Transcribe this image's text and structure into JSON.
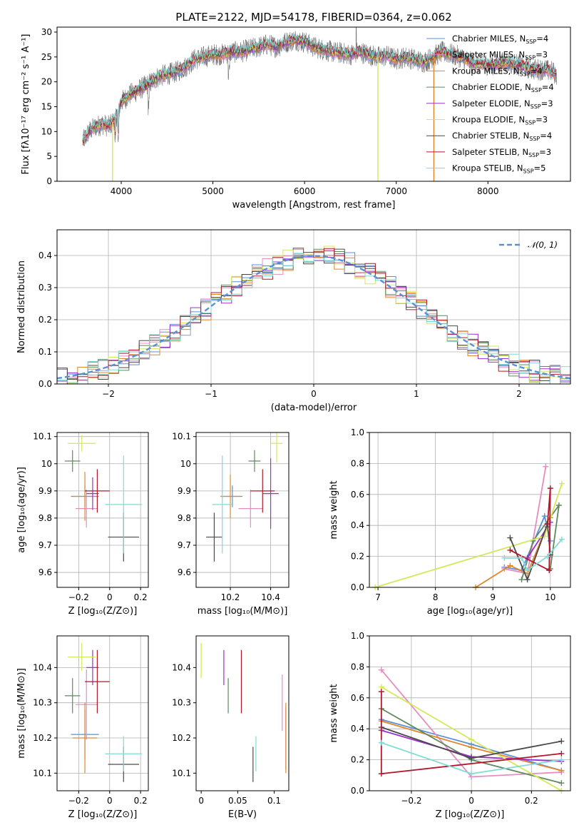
{
  "figure": {
    "title": "PLATE=2122, MJD=54178, FIBERID=0364, z=0.062"
  },
  "series_colors": {
    "Chabrier MILES": "#5b8fd6",
    "Salpeter MILES": "#e68cc2",
    "Kroupa MILES": "#e2872b",
    "Chabrier ELODIE": "#5f8a5f",
    "Salpeter ELODIE": "#9932cc",
    "Kroupa ELODIE": "#d4e85a",
    "Chabrier STELIB": "#4a4a4a",
    "Salpeter STELIB": "#b2182b",
    "Kroupa STELIB": "#7fdcd4"
  },
  "chart_data": [
    {
      "id": "spectrum",
      "type": "line",
      "xlabel": "wavelength [Angstrom, rest frame]",
      "ylabel": "Flux [fλ10⁻¹⁷ erg cm⁻² s⁻¹ A⁻¹]",
      "xlim": [
        3300,
        8900
      ],
      "ylim": [
        0,
        31
      ],
      "xticks": [
        4000,
        5000,
        6000,
        7000,
        8000
      ],
      "yticks": [
        0,
        5,
        10,
        15,
        20,
        25,
        30
      ],
      "grid": false,
      "legend_position": "right",
      "continuum": {
        "x": [
          3580,
          3650,
          3720,
          3800,
          3860,
          3900,
          3960,
          4000,
          4100,
          4200,
          4300,
          4400,
          4500,
          4600,
          4700,
          4800,
          4900,
          5000,
          5100,
          5200,
          5300,
          5400,
          5500,
          5600,
          5700,
          5800,
          5900,
          6000,
          6100,
          6200,
          6300,
          6400,
          6500,
          6600,
          6700,
          6800,
          6900,
          7000,
          7100,
          7200,
          7300,
          7400,
          7500,
          7600,
          7700,
          7800,
          7900,
          8000,
          8100,
          8200,
          8300,
          8400,
          8500,
          8600,
          8700,
          8750
        ],
        "y": [
          8,
          10,
          11,
          11.5,
          11,
          11.8,
          13.5,
          16,
          17.5,
          18.5,
          19.5,
          21,
          21.5,
          22,
          23,
          24.5,
          25,
          25.5,
          25.5,
          26,
          26,
          26.5,
          27,
          27.5,
          27,
          28,
          28.5,
          28,
          27,
          26.5,
          26,
          25.8,
          25.5,
          26,
          25.5,
          25,
          25.2,
          24.5,
          25,
          24.5,
          24,
          25,
          26,
          25.5,
          25,
          24,
          23.5,
          23.5,
          23.5,
          24,
          23.5,
          23,
          22.5,
          22.5,
          22,
          21.5
        ]
      },
      "series": [
        {
          "name": "Chabrier MILES",
          "nssp": "4"
        },
        {
          "name": "Salpeter MILES",
          "nssp": "3"
        },
        {
          "name": "Kroupa MILES",
          "nssp": "4"
        },
        {
          "name": "Chabrier ELODIE",
          "nssp": "4"
        },
        {
          "name": "Salpeter ELODIE",
          "nssp": "3"
        },
        {
          "name": "Kroupa ELODIE",
          "nssp": "3"
        },
        {
          "name": "Chabrier STELIB",
          "nssp": "4"
        },
        {
          "name": "Salpeter STELIB",
          "nssp": "3"
        },
        {
          "name": "Kroupa STELIB",
          "nssp": "5"
        }
      ]
    },
    {
      "id": "residuals",
      "type": "histogram",
      "xlabel": "(data-model)/error",
      "ylabel": "Normed distribution",
      "xlim": [
        -2.5,
        2.5
      ],
      "ylim": [
        0,
        0.48
      ],
      "xticks": [
        -2,
        -1,
        0,
        1,
        2
      ],
      "yticks": [
        0.0,
        0.1,
        0.2,
        0.3,
        0.4
      ],
      "grid": true,
      "legend_position": "top-right",
      "reference_curve": {
        "label": "𝒩(0, 1)",
        "mean": 0,
        "sigma": 1,
        "color": "#5b8fd6"
      },
      "bin_width": 0.1
    },
    {
      "id": "age-vs-Z",
      "type": "scatter",
      "xlabel": "Z [log₁₀(Z/Z⊙)]",
      "ylabel": "age  [log₁₀(age/yr)]",
      "xlim": [
        -0.34,
        0.25
      ],
      "ylim": [
        9.545,
        10.115
      ],
      "xticks": [
        -0.2,
        0.0,
        0.2
      ],
      "yticks": [
        9.6,
        9.7,
        9.8,
        9.9,
        10.0,
        10.1
      ],
      "grid": true,
      "points": [
        {
          "series": "Chabrier MILES",
          "x": -0.16,
          "y": 9.88,
          "xerr": 0.09,
          "yerr": 0.04
        },
        {
          "series": "Salpeter MILES",
          "x": -0.15,
          "y": 9.835,
          "xerr": 0.07,
          "yerr": 0.07
        },
        {
          "series": "Kroupa MILES",
          "x": -0.16,
          "y": 9.88,
          "xerr": 0.08,
          "yerr": 0.09
        },
        {
          "series": "Chabrier ELODIE",
          "x": -0.24,
          "y": 10.01,
          "xerr": 0.05,
          "yerr": 0.04
        },
        {
          "series": "Salpeter ELODIE",
          "x": -0.11,
          "y": 9.89,
          "xerr": 0.04,
          "yerr": 0.06
        },
        {
          "series": "Kroupa ELODIE",
          "x": -0.18,
          "y": 10.075,
          "xerr": 0.09,
          "yerr": 0.03
        },
        {
          "series": "Chabrier STELIB",
          "x": 0.09,
          "y": 9.73,
          "xerr": 0.1,
          "yerr": 0.09
        },
        {
          "series": "Salpeter STELIB",
          "x": -0.08,
          "y": 9.9,
          "xerr": 0.08,
          "yerr": 0.08
        },
        {
          "series": "Kroupa STELIB",
          "x": 0.09,
          "y": 9.85,
          "xerr": 0.12,
          "yerr": 0.18
        }
      ]
    },
    {
      "id": "age-vs-mass",
      "type": "scatter",
      "xlabel": "mass [log₁₀(M/M⊙)]",
      "ylabel": "",
      "xlim": [
        10.03,
        10.49
      ],
      "ylim": [
        9.545,
        10.115
      ],
      "xticks": [
        10.2,
        10.4
      ],
      "yticks": [
        9.6,
        9.7,
        9.8,
        9.9,
        10.0,
        10.1
      ],
      "grid": true,
      "points": [
        {
          "series": "Chabrier MILES",
          "x": 10.21,
          "y": 9.88,
          "xerr": 0.05,
          "yerr": 0.04
        },
        {
          "series": "Salpeter MILES",
          "x": 10.3,
          "y": 9.835,
          "xerr": 0.06,
          "yerr": 0.07
        },
        {
          "series": "Kroupa MILES",
          "x": 10.2,
          "y": 9.88,
          "xerr": 0.05,
          "yerr": 0.08
        },
        {
          "series": "Chabrier ELODIE",
          "x": 10.32,
          "y": 10.01,
          "xerr": 0.03,
          "yerr": 0.04
        },
        {
          "series": "Salpeter ELODIE",
          "x": 10.4,
          "y": 9.89,
          "xerr": 0.04,
          "yerr": 0.13
        },
        {
          "series": "Kroupa ELODIE",
          "x": 10.43,
          "y": 10.075,
          "xerr": 0.03,
          "yerr": 0.07
        },
        {
          "series": "Chabrier STELIB",
          "x": 10.12,
          "y": 9.73,
          "xerr": 0.04,
          "yerr": 0.09
        },
        {
          "series": "Salpeter STELIB",
          "x": 10.36,
          "y": 9.9,
          "xerr": 0.06,
          "yerr": 0.08
        },
        {
          "series": "Kroupa STELIB",
          "x": 10.16,
          "y": 9.85,
          "xerr": 0.05,
          "yerr": 0.18
        }
      ]
    },
    {
      "id": "weight-vs-age",
      "type": "line",
      "xlabel": "age  [log₁₀(age/yr)]",
      "ylabel": "mass weight",
      "xlim": [
        6.85,
        10.35
      ],
      "ylim": [
        0,
        1
      ],
      "xticks": [
        7,
        8,
        9,
        10
      ],
      "yticks": [
        0.0,
        0.2,
        0.4,
        0.6,
        0.8,
        1.0
      ],
      "grid": true,
      "series": [
        {
          "name": "Chabrier MILES",
          "x": [
            9.2,
            9.5,
            9.9,
            10.0
          ],
          "y": [
            0.13,
            0.11,
            0.46,
            0.3
          ]
        },
        {
          "name": "Salpeter MILES",
          "x": [
            9.2,
            9.6,
            9.92
          ],
          "y": [
            0.12,
            0.09,
            0.78
          ]
        },
        {
          "name": "Kroupa MILES",
          "x": [
            8.7,
            9.3,
            9.6,
            10.0
          ],
          "y": [
            0.0,
            0.14,
            0.09,
            0.45
          ]
        },
        {
          "name": "Chabrier ELODIE",
          "x": [
            9.5,
            9.7,
            10.15,
            10.0
          ],
          "y": [
            0.05,
            0.3,
            0.53,
            0.12
          ]
        },
        {
          "name": "Salpeter ELODIE",
          "x": [
            9.6,
            9.95,
            10.0
          ],
          "y": [
            0.19,
            0.39,
            0.42
          ]
        },
        {
          "name": "Kroupa ELODIE",
          "x": [
            6.95,
            9.9,
            10.2
          ],
          "y": [
            0.0,
            0.33,
            0.67
          ]
        },
        {
          "name": "Chabrier STELIB",
          "x": [
            9.3,
            9.6,
            9.95,
            10.0
          ],
          "y": [
            0.32,
            0.05,
            0.41,
            0.21
          ]
        },
        {
          "name": "Salpeter STELIB",
          "x": [
            9.3,
            9.98,
            10.0,
            9.95
          ],
          "y": [
            0.24,
            0.11,
            0.64,
            0.41
          ]
        },
        {
          "name": "Kroupa STELIB",
          "x": [
            9.2,
            9.5,
            9.6,
            9.95,
            10.2
          ],
          "y": [
            0.19,
            0.19,
            0.11,
            0.2,
            0.31
          ]
        }
      ]
    },
    {
      "id": "mass-vs-Z",
      "type": "scatter",
      "xlabel": "Z [log₁₀(Z/Z⊙)]",
      "ylabel": "mass [log₁₀(M/M⊙)]",
      "xlim": [
        -0.34,
        0.25
      ],
      "ylim": [
        10.05,
        10.49
      ],
      "xticks": [
        -0.2,
        0.0,
        0.2
      ],
      "yticks": [
        10.1,
        10.2,
        10.3,
        10.4
      ],
      "grid": true,
      "points": [
        {
          "series": "Chabrier MILES",
          "x": -0.16,
          "y": 10.21,
          "xerr": 0.09,
          "yerr": 0.07
        },
        {
          "series": "Salpeter MILES",
          "x": -0.15,
          "y": 10.295,
          "xerr": 0.07,
          "yerr": 0.1
        },
        {
          "series": "Kroupa MILES",
          "x": -0.16,
          "y": 10.2,
          "xerr": 0.08,
          "yerr": 0.1
        },
        {
          "series": "Chabrier ELODIE",
          "x": -0.24,
          "y": 10.32,
          "xerr": 0.05,
          "yerr": 0.05
        },
        {
          "series": "Salpeter ELODIE",
          "x": -0.11,
          "y": 10.4,
          "xerr": 0.04,
          "yerr": 0.05
        },
        {
          "series": "Kroupa ELODIE",
          "x": -0.18,
          "y": 10.43,
          "xerr": 0.09,
          "yerr": 0.04
        },
        {
          "series": "Chabrier STELIB",
          "x": 0.09,
          "y": 10.125,
          "xerr": 0.1,
          "yerr": 0.05
        },
        {
          "series": "Salpeter STELIB",
          "x": -0.08,
          "y": 10.36,
          "xerr": 0.08,
          "yerr": 0.09
        },
        {
          "series": "Kroupa STELIB",
          "x": 0.09,
          "y": 10.155,
          "xerr": 0.12,
          "yerr": 0.05
        }
      ]
    },
    {
      "id": "mass-vs-ebv",
      "type": "scatter",
      "xlabel": "E(B-V)",
      "ylabel": "",
      "xlim": [
        -0.007,
        0.12
      ],
      "ylim": [
        10.05,
        10.49
      ],
      "xticks": [
        0.0,
        0.05,
        0.1
      ],
      "yticks": [
        10.1,
        10.2,
        10.3,
        10.4
      ],
      "grid": false,
      "points": [
        {
          "series": "Chabrier MILES",
          "x": 0.116,
          "y": 10.2,
          "xerr": 0,
          "yerr": 0.09
        },
        {
          "series": "Salpeter MILES",
          "x": 0.111,
          "y": 10.3,
          "xerr": 0,
          "yerr": 0.08
        },
        {
          "series": "Kroupa MILES",
          "x": 0.116,
          "y": 10.2,
          "xerr": 0,
          "yerr": 0.1
        },
        {
          "series": "Chabrier ELODIE",
          "x": 0.037,
          "y": 10.32,
          "xerr": 0,
          "yerr": 0.05
        },
        {
          "series": "Salpeter ELODIE",
          "x": 0.031,
          "y": 10.4,
          "xerr": 0,
          "yerr": 0.05
        },
        {
          "series": "Kroupa ELODIE",
          "x": 0.0,
          "y": 10.42,
          "xerr": 0,
          "yerr": 0.05
        },
        {
          "series": "Chabrier STELIB",
          "x": 0.071,
          "y": 10.125,
          "xerr": 0,
          "yerr": 0.05
        },
        {
          "series": "Salpeter STELIB",
          "x": 0.055,
          "y": 10.36,
          "xerr": 0,
          "yerr": 0.09
        },
        {
          "series": "Kroupa STELIB",
          "x": 0.075,
          "y": 10.155,
          "xerr": 0,
          "yerr": 0.05
        }
      ]
    },
    {
      "id": "weight-vs-Z",
      "type": "line",
      "xlabel": "Z [log₁₀(Z/Z⊙)]",
      "ylabel": "mass weight",
      "xlim": [
        -0.34,
        0.33
      ],
      "ylim": [
        0,
        1
      ],
      "xticks": [
        -0.2,
        0.0,
        0.2
      ],
      "yticks": [
        0.0,
        0.2,
        0.4,
        0.6,
        0.8,
        1.0
      ],
      "grid": true,
      "series": [
        {
          "name": "Chabrier MILES",
          "x": [
            -0.3,
            0.0,
            0.3
          ],
          "y": [
            0.46,
            0.3,
            0.13
          ]
        },
        {
          "name": "Salpeter MILES",
          "x": [
            -0.3,
            0.0,
            0.3
          ],
          "y": [
            0.78,
            0.09,
            0.12
          ]
        },
        {
          "name": "Kroupa MILES",
          "x": [
            -0.3,
            0.0,
            0.3
          ],
          "y": [
            0.45,
            0.28,
            0.13
          ]
        },
        {
          "name": "Chabrier ELODIE",
          "x": [
            -0.3,
            0.0,
            0.3
          ],
          "y": [
            0.53,
            0.2,
            0.05
          ]
        },
        {
          "name": "Salpeter ELODIE",
          "x": [
            -0.3,
            0.0,
            0.3
          ],
          "y": [
            0.39,
            0.22,
            0.19
          ]
        },
        {
          "name": "Kroupa ELODIE",
          "x": [
            -0.3,
            0.0,
            0.3
          ],
          "y": [
            0.67,
            0.33,
            0.0
          ]
        },
        {
          "name": "Chabrier STELIB",
          "x": [
            -0.3,
            0.0,
            0.3
          ],
          "y": [
            0.41,
            0.21,
            0.32
          ]
        },
        {
          "name": "Salpeter STELIB",
          "x": [
            -0.3,
            -0.3,
            0.3
          ],
          "y": [
            0.64,
            0.11,
            0.24
          ]
        },
        {
          "name": "Kroupa STELIB",
          "x": [
            -0.3,
            0.0,
            0.3
          ],
          "y": [
            0.31,
            0.11,
            0.2
          ]
        }
      ]
    }
  ]
}
